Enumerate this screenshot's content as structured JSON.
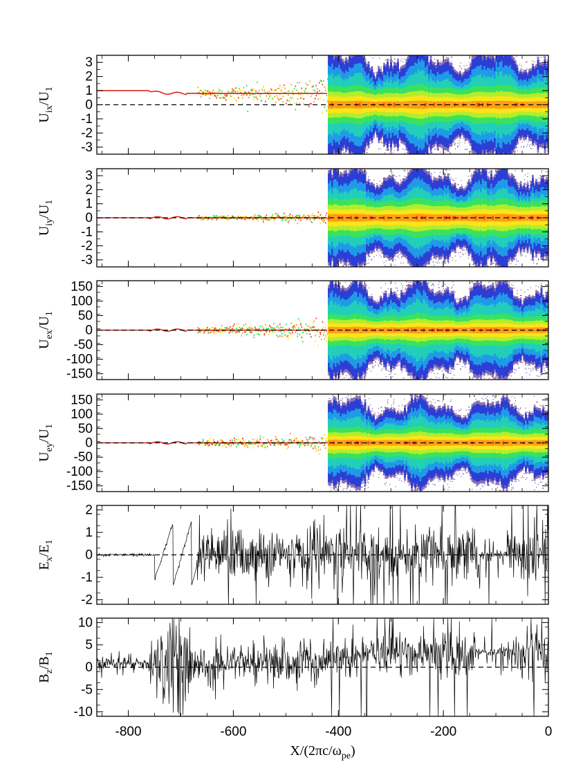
{
  "chart_data": [
    {
      "type": "heatmap",
      "ylabel": {
        "main": "U",
        "sub": "ix",
        "den": "U",
        "den_sub": "1"
      },
      "xlim": [
        -860,
        0
      ],
      "ylim": [
        -3.5,
        3.5
      ],
      "yticks": [
        "3",
        "2",
        "1",
        "0",
        "-1",
        "-2",
        "-3"
      ],
      "ytick_values": [
        3,
        2,
        1,
        0,
        -1,
        -2,
        -3
      ],
      "reference_line": 0,
      "upstream": {
        "x_range": [
          -860,
          -420
        ],
        "level": 0.8,
        "width": 0.15,
        "inflow": 1.0
      },
      "downstream": {
        "x_range": [
          -420,
          0
        ],
        "core_halfwidth": 1.0,
        "outer_halfwidth": 3.0
      }
    },
    {
      "type": "heatmap",
      "ylabel": {
        "main": "U",
        "sub": "iy",
        "den": "U",
        "den_sub": "1"
      },
      "xlim": [
        -860,
        0
      ],
      "ylim": [
        -3.5,
        3.5
      ],
      "yticks": [
        "3",
        "2",
        "1",
        "0",
        "-1",
        "-2",
        "-3"
      ],
      "ytick_values": [
        3,
        2,
        1,
        0,
        -1,
        -2,
        -3
      ],
      "reference_line": 0,
      "upstream": {
        "x_range": [
          -860,
          -420
        ],
        "level": 0.0,
        "width": 0.05,
        "inflow": 0.0
      },
      "downstream": {
        "x_range": [
          -420,
          0
        ],
        "core_halfwidth": 1.0,
        "outer_halfwidth": 2.8
      }
    },
    {
      "type": "heatmap",
      "ylabel": {
        "main": "U",
        "sub": "ex",
        "den": "U",
        "den_sub": "1"
      },
      "xlim": [
        -860,
        0
      ],
      "ylim": [
        -170,
        170
      ],
      "yticks": [
        "150",
        "100",
        "50",
        "0",
        "-50",
        "-100",
        "-150"
      ],
      "ytick_values": [
        150,
        100,
        50,
        0,
        -50,
        -100,
        -150
      ],
      "reference_line": 0,
      "upstream": {
        "x_range": [
          -860,
          -420
        ],
        "level": 0,
        "width": 5,
        "inflow": 0
      },
      "downstream": {
        "x_range": [
          -420,
          0
        ],
        "core_halfwidth": 40,
        "outer_halfwidth": 130
      }
    },
    {
      "type": "heatmap",
      "ylabel": {
        "main": "U",
        "sub": "ey",
        "den": "U",
        "den_sub": "1"
      },
      "xlim": [
        -860,
        0
      ],
      "ylim": [
        -170,
        170
      ],
      "yticks": [
        "150",
        "100",
        "50",
        "0",
        "-50",
        "-100",
        "-150"
      ],
      "ytick_values": [
        150,
        100,
        50,
        0,
        -50,
        -100,
        -150
      ],
      "reference_line": 0,
      "upstream": {
        "x_range": [
          -860,
          -420
        ],
        "level": 0,
        "width": 4,
        "inflow": 0
      },
      "downstream": {
        "x_range": [
          -420,
          0
        ],
        "core_halfwidth": 40,
        "outer_halfwidth": 120
      }
    },
    {
      "type": "line",
      "ylabel": {
        "main": "E",
        "sub": "x",
        "den": "E",
        "den_sub": "1"
      },
      "xlim": [
        -860,
        0
      ],
      "ylim": [
        -2.2,
        2.2
      ],
      "yticks": [
        "2",
        "1",
        "0",
        "-1",
        "-2"
      ],
      "ytick_values": [
        2,
        1,
        0,
        -1,
        -2
      ],
      "reference_line": 0,
      "features": {
        "sawtooth_peaks": [
          {
            "x": -735,
            "min": -1.1,
            "max": 1.4
          },
          {
            "x": -700,
            "min": -1.4,
            "max": 1.5
          }
        ],
        "dense_noise_region": [
          -650,
          -420
        ],
        "shock_x": -420
      }
    },
    {
      "type": "line",
      "ylabel": {
        "main": "B",
        "sub": "z",
        "den": "B",
        "den_sub": "1"
      },
      "xlim": [
        -860,
        0
      ],
      "ylim": [
        -11,
        11
      ],
      "yticks": [
        "10",
        "5",
        "0",
        "-5",
        "-10"
      ],
      "ytick_values": [
        10,
        5,
        0,
        -5,
        -10
      ],
      "reference_line": 0,
      "features": {
        "baseline_upstream": 1.0,
        "burst_region": [
          -760,
          -680
        ],
        "shock_x": -420,
        "baseline_downstream": 3.0
      }
    }
  ],
  "xaxis": {
    "ticks": [
      "-800",
      "-600",
      "-400",
      "-200",
      "0"
    ],
    "tick_values": [
      -800,
      -600,
      -400,
      -200,
      0
    ],
    "label": "X/(2πc/ω",
    "label_sub": "pe",
    "label_end": ")"
  },
  "colors": {
    "frame": "#000000",
    "inflow_line": "#e0231b",
    "palette": [
      "#3a0a78",
      "#2b3fd6",
      "#1f9ee8",
      "#22d1b8",
      "#3be35a",
      "#b8ee2a",
      "#ffe41a",
      "#ff9c14",
      "#f0431c"
    ]
  }
}
